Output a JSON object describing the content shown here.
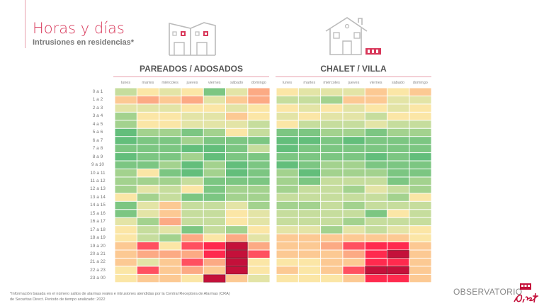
{
  "header": {
    "title": "Horas y días",
    "subtitle": "Intrusiones en residencias*"
  },
  "footer": {
    "note_line1": "*Información basada en el número saltos de alarmas reales e intrusiones atendidas por la Central Receptora de Alarmas (CRA)",
    "note_line2": "de Securitas Direct. Periodo de tiempo analizado: 2022",
    "brand": "OBSERVATORIO",
    "logo_text": "Direct"
  },
  "icons": {
    "left": "semi-detached-houses-icon",
    "right": "chalet-house-icon"
  },
  "colors": {
    "accent": "#d8385a",
    "scale": [
      "#63be7b",
      "#7cc682",
      "#a3d28e",
      "#c6dd9d",
      "#e3e4a6",
      "#fbe6a6",
      "#fcc993",
      "#fcaa84",
      "#ff5060",
      "#ff2a4e",
      "#c4103a"
    ]
  },
  "chart_data": [
    {
      "type": "heatmap",
      "title": "PAREADOS / ADOSADOS",
      "x_categories": [
        "lunes",
        "martes",
        "miércoles",
        "jueves",
        "viernes",
        "sábado",
        "domingo"
      ],
      "y_categories": [
        "0 a 1",
        "1 a 2",
        "2 a 3",
        "3 a 4",
        "4 a 5",
        "5 a 6",
        "6 a 7",
        "7 a 8",
        "8 a 9",
        "9 a 10",
        "10 a 11",
        "11 a 12",
        "12 a 13",
        "13 a 14",
        "14 a 15",
        "15 a 16",
        "16 a 17",
        "17 a 18",
        "18 a 19",
        "19 a 20",
        "20 a 21",
        "21 a 22",
        "22 a 23",
        "23 a 00"
      ],
      "values": [
        [
          3,
          5,
          4,
          5,
          1,
          4,
          7
        ],
        [
          6,
          7,
          6,
          7,
          4,
          6,
          7
        ],
        [
          4,
          4,
          4,
          5,
          5,
          4,
          5
        ],
        [
          2,
          5,
          5,
          4,
          4,
          6,
          5
        ],
        [
          2,
          5,
          5,
          4,
          4,
          4,
          3
        ],
        [
          0,
          2,
          2,
          1,
          2,
          5,
          3
        ],
        [
          0,
          1,
          1,
          2,
          1,
          1,
          1
        ],
        [
          1,
          1,
          1,
          0,
          0,
          1,
          3
        ],
        [
          0,
          1,
          1,
          2,
          0,
          1,
          1
        ],
        [
          1,
          1,
          2,
          0,
          2,
          0,
          1
        ],
        [
          2,
          5,
          1,
          0,
          2,
          0,
          1
        ],
        [
          2,
          2,
          2,
          3,
          1,
          1,
          1
        ],
        [
          2,
          4,
          3,
          5,
          1,
          2,
          2
        ],
        [
          5,
          2,
          3,
          1,
          1,
          2,
          2
        ],
        [
          1,
          4,
          6,
          3,
          3,
          4,
          2
        ],
        [
          1,
          4,
          6,
          3,
          3,
          5,
          4
        ],
        [
          4,
          2,
          7,
          3,
          3,
          5,
          4
        ],
        [
          5,
          3,
          4,
          1,
          3,
          2,
          5
        ],
        [
          5,
          3,
          2,
          7,
          5,
          7,
          4
        ],
        [
          6,
          8,
          5,
          8,
          9,
          10,
          7
        ],
        [
          6,
          7,
          7,
          7,
          9,
          10,
          8
        ],
        [
          6,
          4,
          6,
          8,
          7,
          10,
          5
        ],
        [
          5,
          8,
          6,
          7,
          6,
          10,
          5
        ],
        [
          5,
          6,
          6,
          5,
          10,
          6,
          4
        ]
      ]
    },
    {
      "type": "heatmap",
      "title": "CHALET / VILLA",
      "x_categories": [
        "lunes",
        "martes",
        "miércoles",
        "jueves",
        "viernes",
        "sábado",
        "domingo"
      ],
      "values": [
        [
          5,
          4,
          4,
          4,
          6,
          5,
          6
        ],
        [
          3,
          3,
          2,
          6,
          6,
          4,
          4
        ],
        [
          5,
          4,
          5,
          4,
          5,
          4,
          5
        ],
        [
          4,
          5,
          4,
          4,
          3,
          5,
          5
        ],
        [
          5,
          3,
          3,
          3,
          4,
          3,
          3
        ],
        [
          1,
          1,
          2,
          2,
          1,
          2,
          2
        ],
        [
          0,
          0,
          1,
          0,
          1,
          1,
          1
        ],
        [
          0,
          1,
          1,
          1,
          1,
          1,
          1
        ],
        [
          1,
          1,
          1,
          1,
          0,
          1,
          0
        ],
        [
          0,
          1,
          2,
          2,
          1,
          1,
          1
        ],
        [
          2,
          0,
          2,
          2,
          2,
          1,
          1
        ],
        [
          2,
          1,
          3,
          3,
          3,
          1,
          2
        ],
        [
          2,
          3,
          3,
          2,
          4,
          3,
          2
        ],
        [
          3,
          3,
          3,
          3,
          3,
          2,
          5
        ],
        [
          2,
          2,
          3,
          2,
          3,
          3,
          3
        ],
        [
          3,
          3,
          3,
          3,
          1,
          5,
          3
        ],
        [
          3,
          3,
          3,
          2,
          3,
          3,
          3
        ],
        [
          4,
          4,
          2,
          4,
          3,
          4,
          5
        ],
        [
          6,
          6,
          6,
          6,
          6,
          6,
          5
        ],
        [
          6,
          6,
          7,
          8,
          9,
          9,
          6
        ],
        [
          6,
          6,
          6,
          7,
          9,
          10,
          6
        ],
        [
          5,
          5,
          6,
          6,
          9,
          9,
          6
        ],
        [
          6,
          5,
          6,
          8,
          10,
          10,
          6
        ],
        [
          5,
          5,
          5,
          6,
          9,
          9,
          6
        ]
      ]
    }
  ]
}
